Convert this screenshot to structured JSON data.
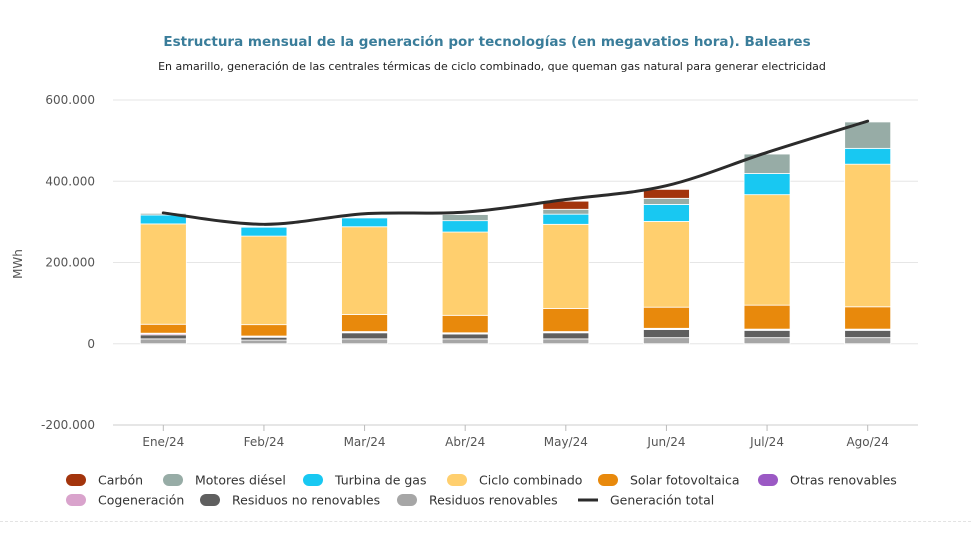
{
  "chart_data": {
    "type": "bar",
    "stacked": true,
    "title": "Estructura mensual de la generación por tecnologías (en megavatios hora). Baleares",
    "subtitle": "En amarillo, generación de las centrales térmicas de ciclo combinado, que queman gas natural para generar electricidad",
    "ylabel": "MWh",
    "ylim": [
      -200000,
      600000
    ],
    "yticks": [
      -200000,
      0,
      200000,
      400000,
      600000
    ],
    "ytick_labels": [
      "-200.000",
      "0",
      "200.000",
      "400.000",
      "600.000"
    ],
    "grid": true,
    "legend_position": "bottom",
    "categories": [
      "Ene/24",
      "Feb/24",
      "Mar/24",
      "Abr/24",
      "May/24",
      "Jun/24",
      "Jul/24",
      "Ago/24"
    ],
    "series": [
      {
        "name": "Residuos renovables",
        "color": "#a6a6a6",
        "values": [
          12000,
          9000,
          12000,
          12000,
          12000,
          15000,
          15000,
          15000
        ]
      },
      {
        "name": "Residuos no renovables",
        "color": "#5f5f5f",
        "values": [
          10000,
          7000,
          15000,
          12000,
          15000,
          20000,
          18000,
          18000
        ]
      },
      {
        "name": "Cogeneración",
        "color": "#d9a3cc",
        "values": [
          3000,
          2000,
          2000,
          2000,
          2000,
          2000,
          2000,
          2000
        ]
      },
      {
        "name": "Otras renovables",
        "color": "#9b59c4",
        "values": [
          1000,
          1000,
          1000,
          1000,
          1000,
          1000,
          1000,
          1000
        ]
      },
      {
        "name": "Solar fotovoltaica",
        "color": "#e8890c",
        "values": [
          22000,
          28000,
          42000,
          43000,
          57000,
          52000,
          59000,
          55000
        ]
      },
      {
        "name": "Ciclo combinado",
        "color": "#ffcf6e",
        "values": [
          247000,
          218000,
          216000,
          205000,
          207000,
          211000,
          272000,
          351000
        ]
      },
      {
        "name": "Turbina de gas",
        "color": "#18c8f2",
        "values": [
          22000,
          22000,
          22000,
          28000,
          25000,
          42000,
          52000,
          39000
        ]
      },
      {
        "name": "Motores diésel",
        "color": "#97aca6",
        "values": [
          4000,
          1000,
          2000,
          15000,
          12000,
          15000,
          48000,
          65000
        ]
      },
      {
        "name": "Carbón",
        "color": "#a3340c",
        "values": [
          0,
          0,
          0,
          0,
          20000,
          22000,
          0,
          0
        ]
      }
    ],
    "line": {
      "name": "Generación total",
      "color": "#2b2b2b",
      "values": [
        322000,
        294000,
        320000,
        324000,
        355000,
        389000,
        471000,
        548000
      ]
    },
    "legend": [
      "Carbón",
      "Motores diésel",
      "Turbina de gas",
      "Ciclo combinado",
      "Solar fotovoltaica",
      "Otras renovables",
      "Cogeneración",
      "Residuos no renovables",
      "Residuos renovables",
      "Generación total"
    ]
  }
}
